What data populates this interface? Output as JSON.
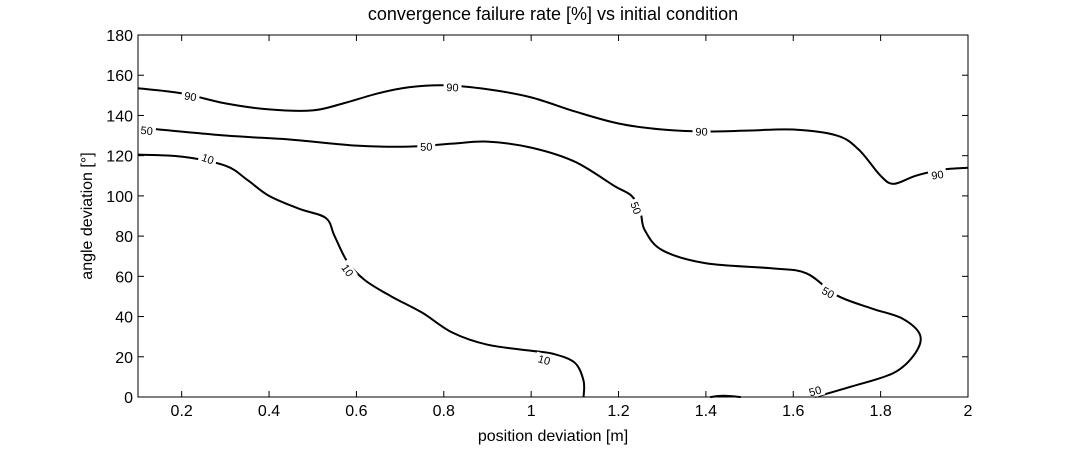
{
  "chart_data": {
    "type": "contour",
    "title": "convergence failure rate [%] vs initial condition",
    "xlabel": "position deviation [m]",
    "ylabel": "angle deviation [°]",
    "xlim": [
      0.1,
      2.0
    ],
    "ylim": [
      0,
      180
    ],
    "x_ticks": [
      0.2,
      0.4,
      0.6,
      0.8,
      1,
      1.2,
      1.4,
      1.6,
      1.8,
      2
    ],
    "x_tick_labels": [
      "0.2",
      "0.4",
      "0.6",
      "0.8",
      "1",
      "1.2",
      "1.4",
      "1.6",
      "1.8",
      "2"
    ],
    "y_ticks": [
      0,
      20,
      40,
      60,
      80,
      100,
      120,
      140,
      160,
      180
    ],
    "y_tick_labels": [
      "0",
      "20",
      "40",
      "60",
      "80",
      "100",
      "120",
      "140",
      "160",
      "180"
    ],
    "grid": false,
    "line_color": "#000000",
    "contours": [
      {
        "level": 90,
        "label": "90",
        "points": [
          [
            0.1,
            153.5
          ],
          [
            0.2,
            151
          ],
          [
            0.3,
            146
          ],
          [
            0.4,
            143
          ],
          [
            0.5,
            142.5
          ],
          [
            0.57,
            146
          ],
          [
            0.65,
            151
          ],
          [
            0.72,
            154
          ],
          [
            0.8,
            155
          ],
          [
            0.9,
            153
          ],
          [
            1.0,
            149
          ],
          [
            1.1,
            142
          ],
          [
            1.2,
            136
          ],
          [
            1.3,
            133
          ],
          [
            1.4,
            132
          ],
          [
            1.5,
            132.5
          ],
          [
            1.6,
            133
          ],
          [
            1.7,
            130
          ],
          [
            1.75,
            123
          ],
          [
            1.8,
            110
          ],
          [
            1.83,
            106
          ],
          [
            1.88,
            110
          ],
          [
            1.94,
            113
          ],
          [
            2.0,
            114
          ]
        ],
        "label_positions": [
          [
            0.22,
            149.5
          ],
          [
            0.82,
            154
          ],
          [
            1.39,
            132
          ],
          [
            1.93,
            110.5
          ]
        ]
      },
      {
        "level": 50,
        "label": "50",
        "points": [
          [
            0.1,
            134
          ],
          [
            0.3,
            130
          ],
          [
            0.45,
            128
          ],
          [
            0.6,
            125
          ],
          [
            0.72,
            124.5
          ],
          [
            0.82,
            126
          ],
          [
            0.9,
            127
          ],
          [
            1.0,
            124
          ],
          [
            1.1,
            117
          ],
          [
            1.19,
            105
          ],
          [
            1.23,
            100
          ],
          [
            1.25,
            92
          ],
          [
            1.26,
            83
          ],
          [
            1.3,
            73
          ],
          [
            1.4,
            66.5
          ],
          [
            1.55,
            64
          ],
          [
            1.63,
            61.5
          ],
          [
            1.7,
            50.5
          ],
          [
            1.78,
            44
          ],
          [
            1.85,
            39
          ],
          [
            1.89,
            31
          ],
          [
            1.88,
            22
          ],
          [
            1.83,
            12
          ],
          [
            1.73,
            5
          ],
          [
            1.65,
            0
          ]
        ],
        "label_positions": [
          [
            0.12,
            132.5
          ],
          [
            0.76,
            124.5
          ],
          [
            1.24,
            94
          ],
          [
            1.68,
            52
          ],
          [
            1.65,
            3
          ]
        ]
      },
      {
        "level": 10,
        "label": "10",
        "points": [
          [
            0.1,
            120.5
          ],
          [
            0.2,
            119.5
          ],
          [
            0.3,
            115
          ],
          [
            0.35,
            108
          ],
          [
            0.4,
            100
          ],
          [
            0.47,
            93.5
          ],
          [
            0.53,
            89
          ],
          [
            0.55,
            80
          ],
          [
            0.58,
            67
          ],
          [
            0.62,
            58
          ],
          [
            0.68,
            50
          ],
          [
            0.75,
            42
          ],
          [
            0.82,
            32
          ],
          [
            0.9,
            26
          ],
          [
            1.0,
            23
          ],
          [
            1.05,
            21.5
          ],
          [
            1.1,
            17
          ],
          [
            1.12,
            8
          ],
          [
            1.12,
            0
          ]
        ],
        "label_positions": [
          [
            0.26,
            118.5
          ],
          [
            0.58,
            63
          ],
          [
            1.03,
            18.5
          ]
        ]
      },
      {
        "level": 10,
        "label": "",
        "points": [
          [
            1.41,
            0
          ],
          [
            1.44,
            0.6
          ],
          [
            1.48,
            0
          ]
        ],
        "label_positions": []
      }
    ]
  }
}
